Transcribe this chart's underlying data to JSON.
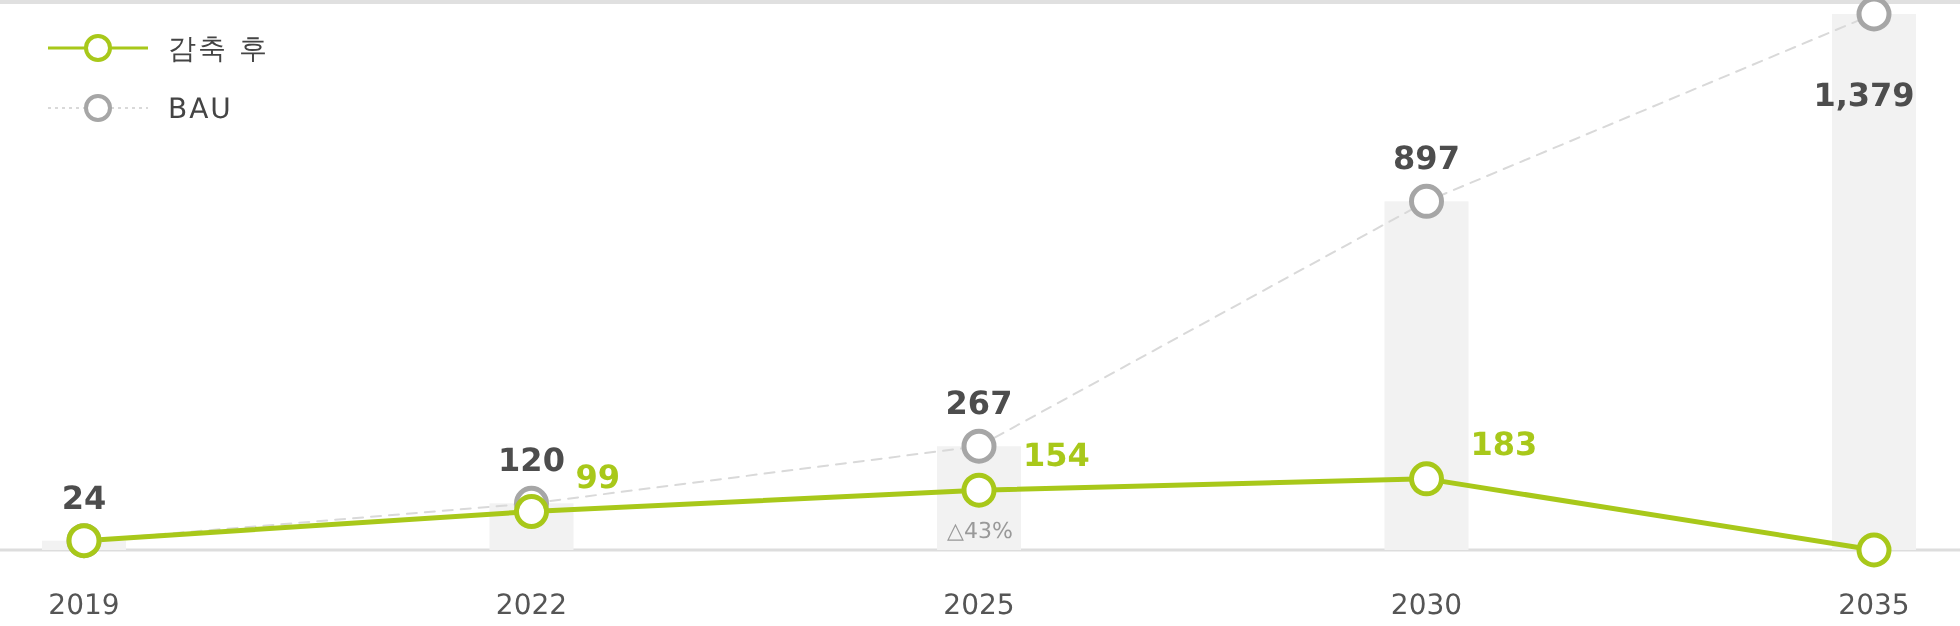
{
  "chart_data": {
    "type": "line",
    "categories": [
      "2019",
      "2022",
      "2025",
      "2030",
      "2035"
    ],
    "series": [
      {
        "type": "bar",
        "color": "#f2f2f2",
        "values": [
          24,
          120,
          267,
          897,
          1379
        ]
      },
      {
        "name": "BAU",
        "color": "#a6a6a6",
        "line_style": "dashed",
        "values": [
          24,
          120,
          267,
          897,
          1379
        ],
        "value_labels": [
          "24",
          "120",
          "267",
          "897",
          "1,379"
        ]
      },
      {
        "name": "감축 후",
        "color": "#a8c81a",
        "line_style": "solid",
        "values": [
          24,
          99,
          154,
          183,
          0
        ],
        "value_labels": [
          null,
          "99",
          "154",
          "183",
          null
        ]
      }
    ],
    "marker": "circle",
    "legend": "top left",
    "annotations": [
      "△43%"
    ]
  }
}
